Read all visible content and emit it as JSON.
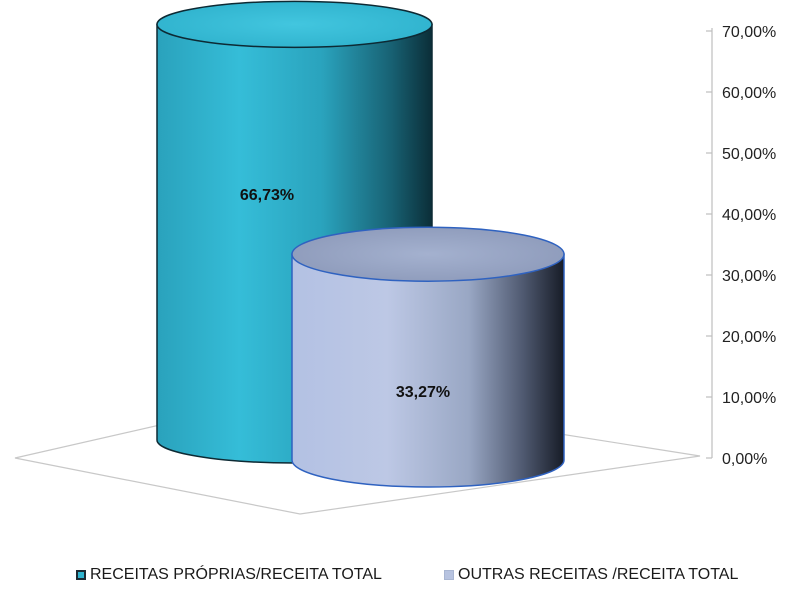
{
  "chart_data": {
    "type": "bar",
    "style": "3d-cylinder",
    "categories": [
      "RECEITAS PRÓPRIAS/RECEITA TOTAL",
      "OUTRAS RECEITAS /RECEITA TOTAL"
    ],
    "values": [
      66.73,
      33.27
    ],
    "data_labels": [
      "66,73%",
      "33,27%"
    ],
    "ylim": [
      0,
      70
    ],
    "yticks": [
      0,
      10,
      20,
      30,
      40,
      50,
      60,
      70
    ],
    "ytick_labels": [
      "0,00%",
      "10,00%",
      "20,00%",
      "30,00%",
      "40,00%",
      "50,00%",
      "60,00%",
      "70,00%"
    ],
    "y_axis_position": "right",
    "grid": false,
    "legend_position": "bottom",
    "title": "",
    "xlabel": "",
    "ylabel": "",
    "colors": [
      "#2fb4cf",
      "#b7c3e0"
    ]
  },
  "legend": [
    {
      "label": "RECEITAS PRÓPRIAS/RECEITA TOTAL",
      "color": "#2fb4cf"
    },
    {
      "label": "OUTRAS RECEITAS /RECEITA TOTAL",
      "color": "#b7c3e0"
    }
  ]
}
